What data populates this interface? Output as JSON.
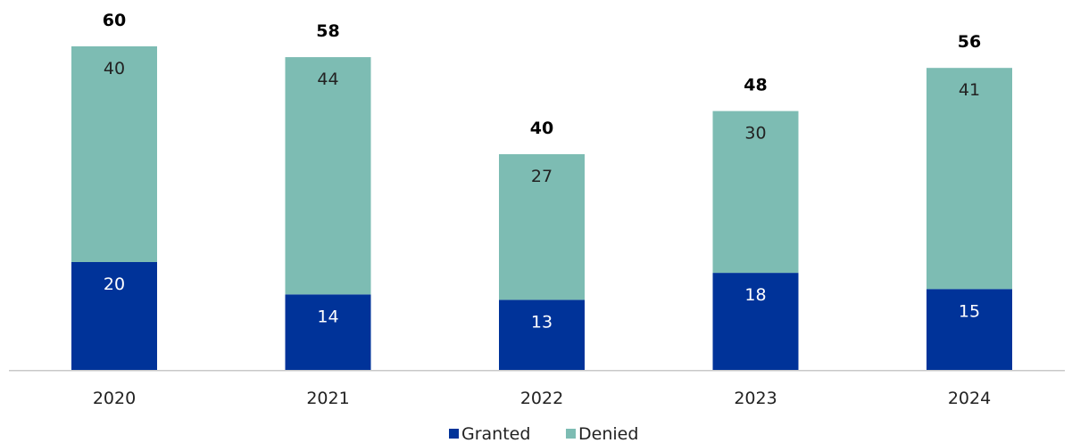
{
  "chart_data": {
    "type": "bar",
    "stacked": true,
    "categories": [
      "2020",
      "2021",
      "2022",
      "2023",
      "2024"
    ],
    "series": [
      {
        "name": "Granted",
        "color": "#003399",
        "values": [
          20,
          14,
          13,
          18,
          15
        ]
      },
      {
        "name": "Denied",
        "color": "#7dbcb3",
        "values": [
          40,
          44,
          27,
          30,
          41
        ]
      }
    ],
    "totals": [
      60,
      58,
      40,
      48,
      56
    ],
    "ylim": [
      0,
      64
    ],
    "grid": false,
    "legend_position": "bottom-center",
    "title": "",
    "xlabel": "",
    "ylabel": ""
  }
}
